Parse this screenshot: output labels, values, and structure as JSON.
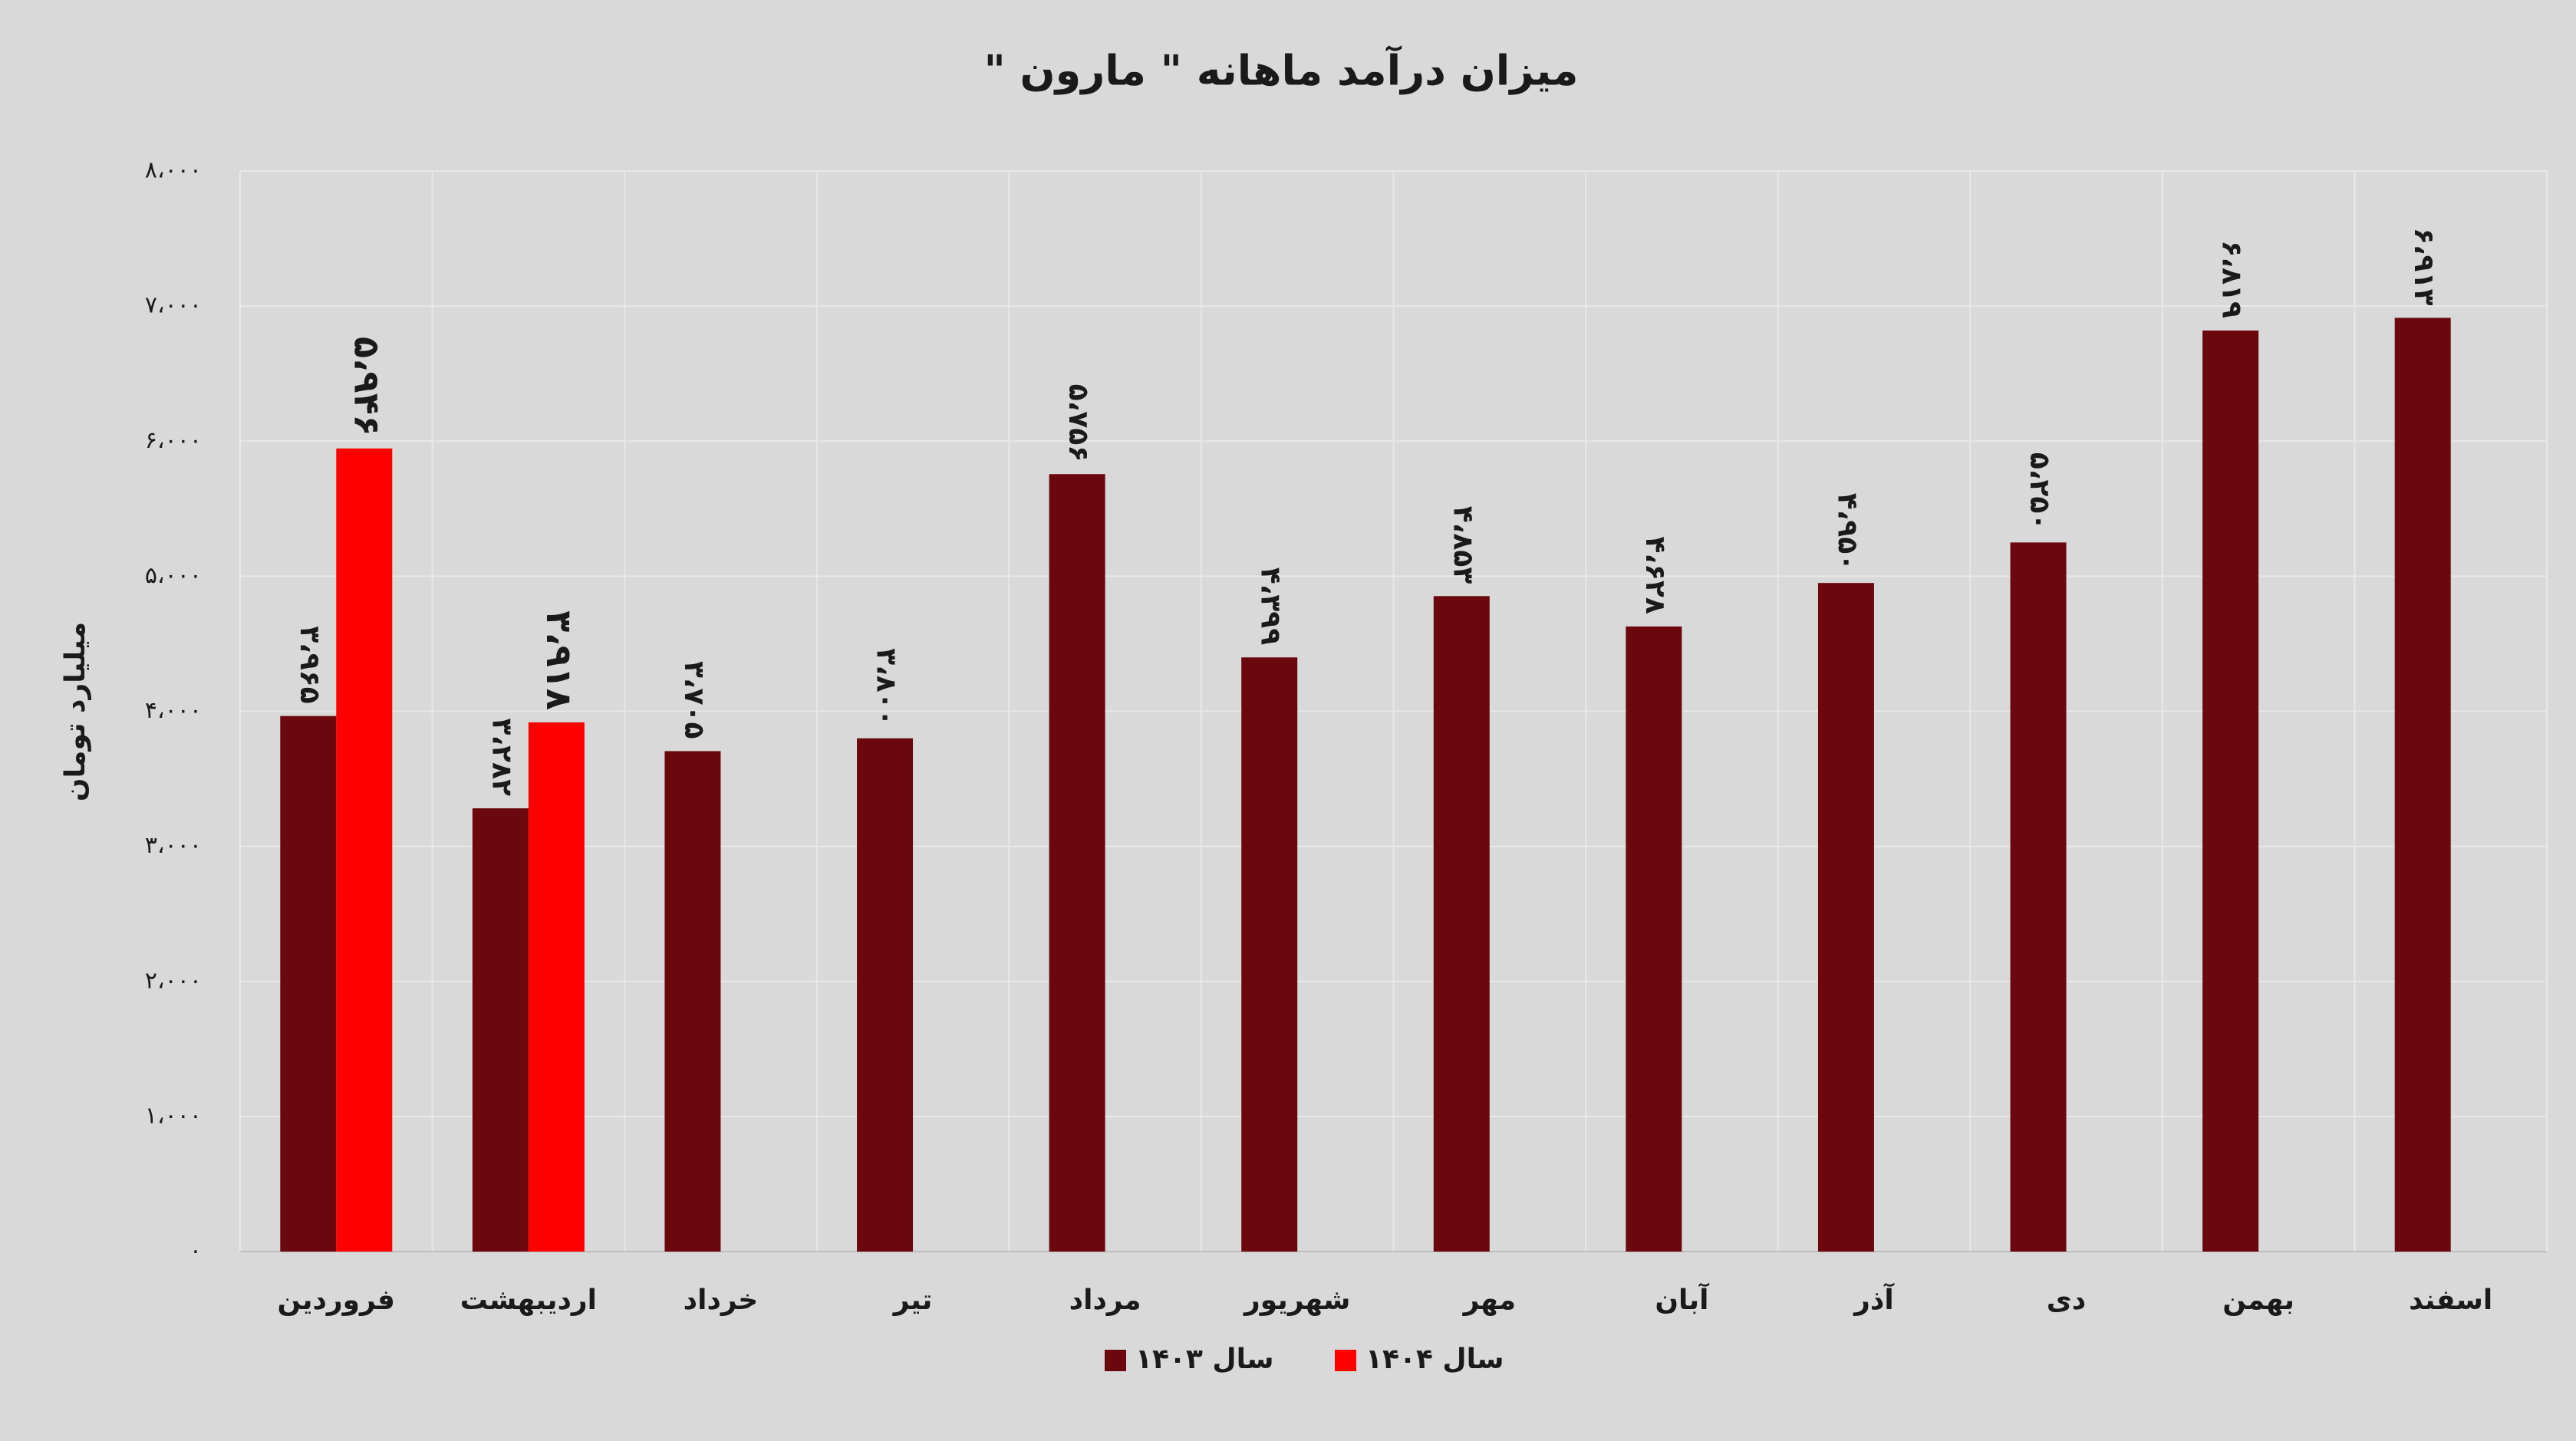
{
  "chart_data": {
    "type": "bar",
    "title": "میزان درآمد ماهانه \" مارون \"",
    "y_label": "میلیارد تومان",
    "categories": [
      "فروردین",
      "اردیبهشت",
      "خرداد",
      "تیر",
      "مرداد",
      "شهریور",
      "مهر",
      "آبان",
      "آذر",
      "دی",
      "بهمن",
      "اسفند"
    ],
    "series": [
      {
        "name": "سال ۱۴۰۳",
        "color": "#6b080d",
        "values": [
          3965,
          3282,
          3705,
          3800,
          5756,
          4399,
          4853,
          4628,
          4950,
          5250,
          6819,
          6913
        ],
        "value_labels": [
          "۳،۹۶۵",
          "۳،۲۸۲",
          "۳،۷۰۵",
          "۳،۸۰۰",
          "۵،۷۵۶",
          "۴،۳۹۹",
          "۴،۸۵۳",
          "۴،۶۲۸",
          "۴،۹۵۰",
          "۵،۲۵۰",
          "۶،۸۱۹",
          "۶،۹۱۳"
        ]
      },
      {
        "name": "سال ۱۴۰۴",
        "color": "#ff0000",
        "values": [
          5946,
          3918,
          null,
          null,
          null,
          null,
          null,
          null,
          null,
          null,
          null,
          null
        ],
        "value_labels": [
          "۵،۹۴۶",
          "۳،۹۱۸",
          null,
          null,
          null,
          null,
          null,
          null,
          null,
          null,
          null,
          null
        ]
      }
    ],
    "ylim": [
      0,
      8000
    ],
    "yticks": [
      {
        "value": 0,
        "label": "۰"
      },
      {
        "value": 1000,
        "label": "۱،۰۰۰"
      },
      {
        "value": 2000,
        "label": "۲،۰۰۰"
      },
      {
        "value": 3000,
        "label": "۳،۰۰۰"
      },
      {
        "value": 4000,
        "label": "۴،۰۰۰"
      },
      {
        "value": 5000,
        "label": "۵،۰۰۰"
      },
      {
        "value": 6000,
        "label": "۶،۰۰۰"
      },
      {
        "value": 7000,
        "label": "۷،۰۰۰"
      },
      {
        "value": 8000,
        "label": "۸،۰۰۰"
      }
    ],
    "grid": true
  }
}
